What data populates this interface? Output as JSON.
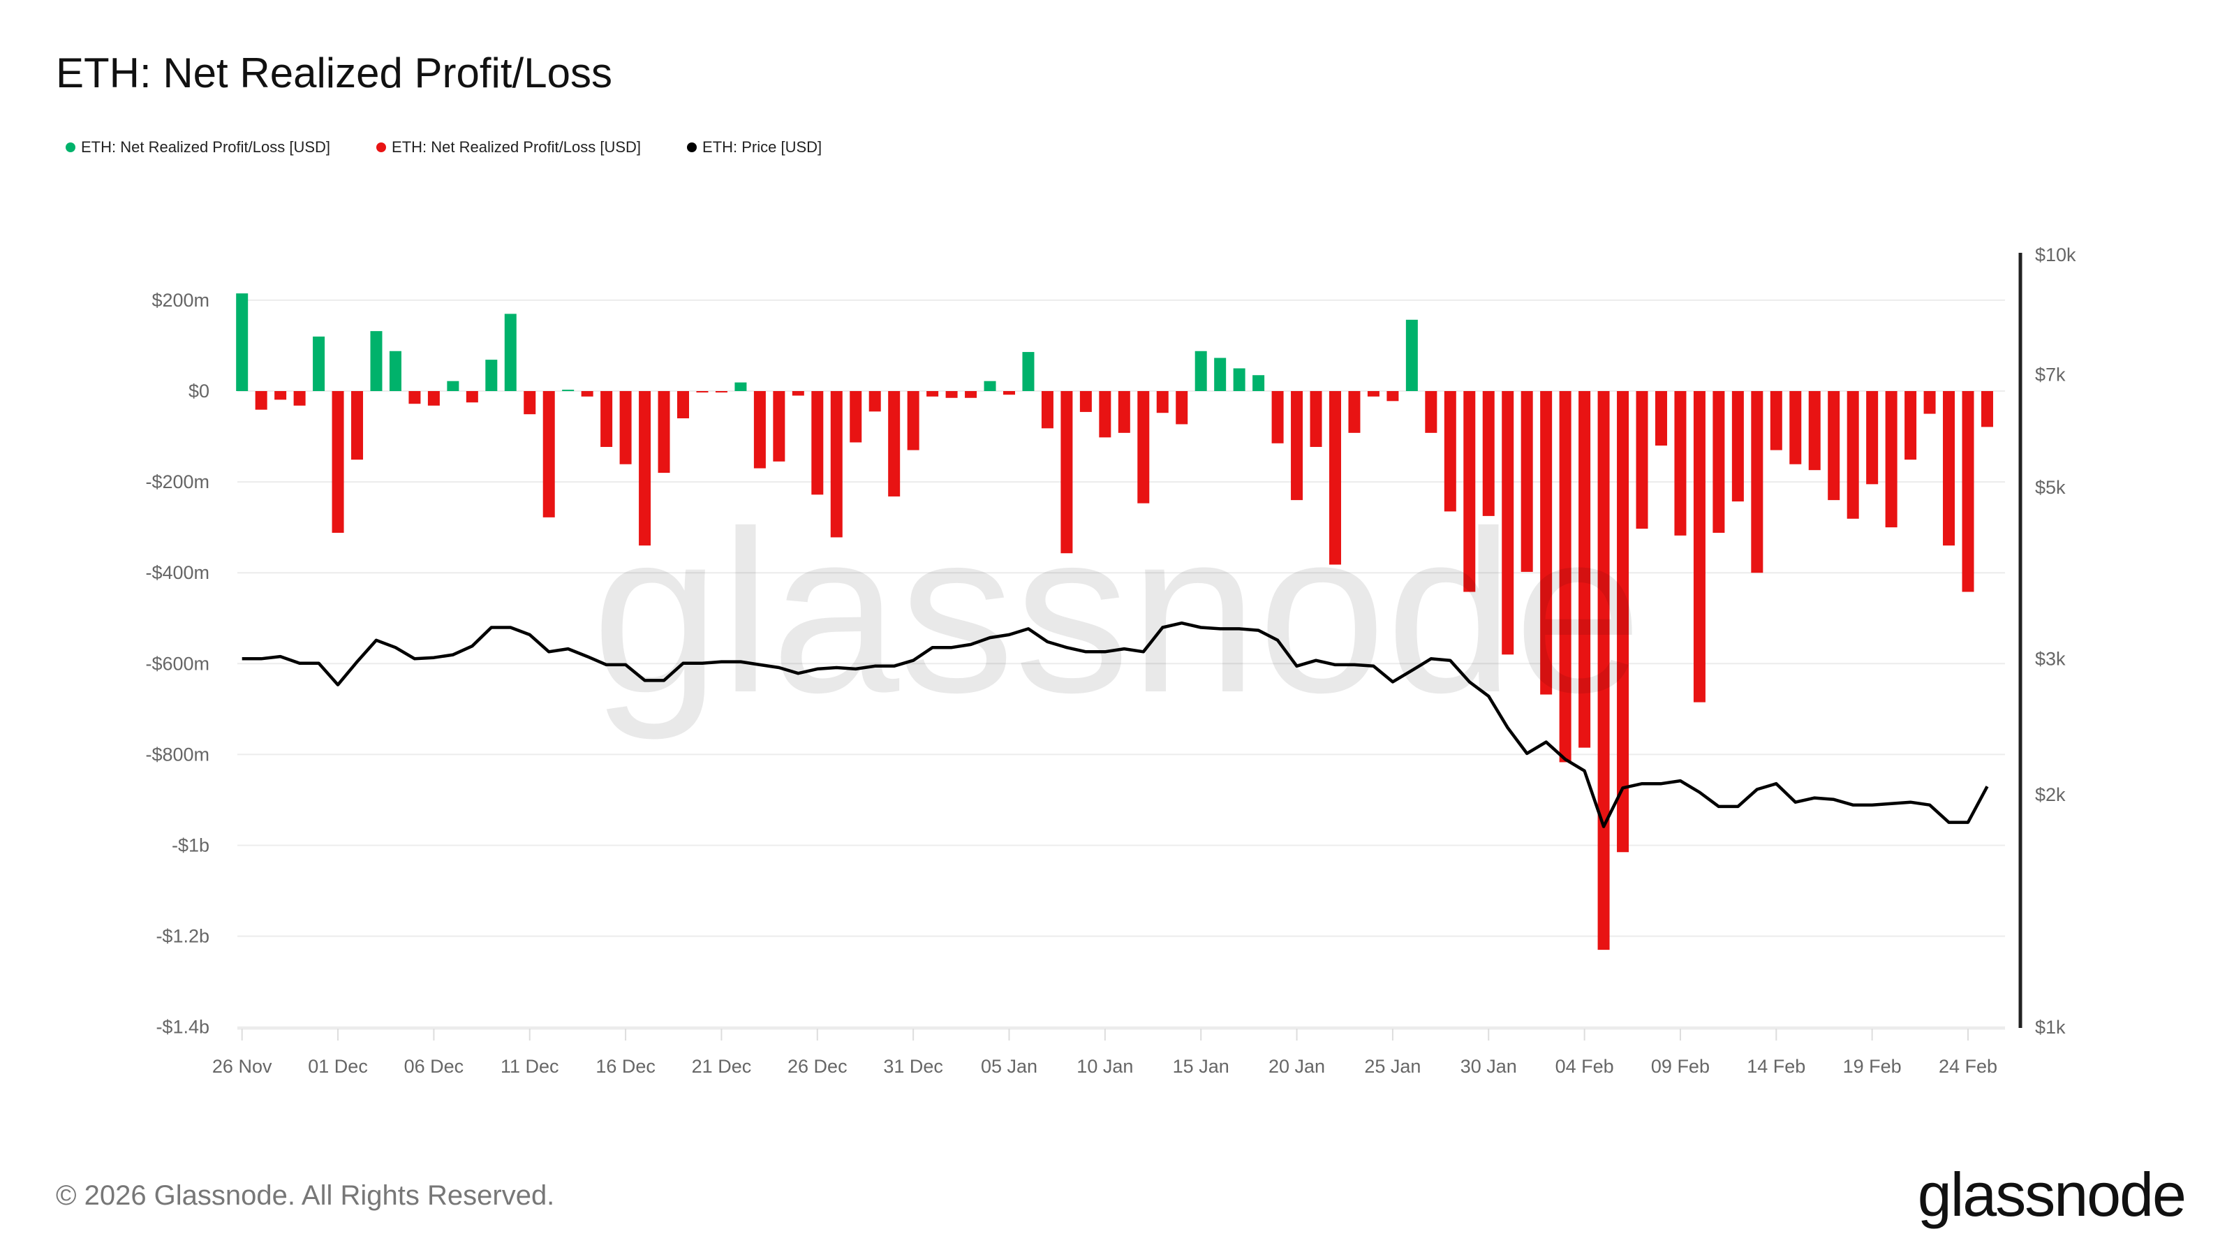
{
  "title": "ETH: Net Realized Profit/Loss",
  "legend": [
    {
      "label": "ETH: Net Realized Profit/Loss [USD]",
      "color": "#00b26b"
    },
    {
      "label": "ETH: Net Realized Profit/Loss [USD]",
      "color": "#e81313"
    },
    {
      "label": "ETH: Price [USD]",
      "color": "#000000"
    }
  ],
  "footer": "© 2026 Glassnode. All Rights Reserved.",
  "logo": "glassnode",
  "watermark": "glassnode",
  "chart_data": {
    "type": "bar",
    "title": "ETH: Net Realized Profit/Loss",
    "x_tick_labels": [
      "26 Nov",
      "01 Dec",
      "06 Dec",
      "11 Dec",
      "16 Dec",
      "21 Dec",
      "26 Dec",
      "31 Dec",
      "05 Jan",
      "10 Jan",
      "15 Jan",
      "20 Jan",
      "25 Jan",
      "30 Jan",
      "04 Feb",
      "09 Feb",
      "14 Feb",
      "19 Feb",
      "24 Feb"
    ],
    "x": [
      "26 Nov",
      "27 Nov",
      "28 Nov",
      "29 Nov",
      "30 Nov",
      "01 Dec",
      "02 Dec",
      "03 Dec",
      "04 Dec",
      "05 Dec",
      "06 Dec",
      "07 Dec",
      "08 Dec",
      "09 Dec",
      "10 Dec",
      "11 Dec",
      "12 Dec",
      "13 Dec",
      "14 Dec",
      "15 Dec",
      "16 Dec",
      "17 Dec",
      "18 Dec",
      "19 Dec",
      "20 Dec",
      "21 Dec",
      "22 Dec",
      "23 Dec",
      "24 Dec",
      "25 Dec",
      "26 Dec",
      "27 Dec",
      "28 Dec",
      "29 Dec",
      "30 Dec",
      "31 Dec",
      "01 Jan",
      "02 Jan",
      "03 Jan",
      "04 Jan",
      "05 Jan",
      "06 Jan",
      "07 Jan",
      "08 Jan",
      "09 Jan",
      "10 Jan",
      "11 Jan",
      "12 Jan",
      "13 Jan",
      "14 Jan",
      "15 Jan",
      "16 Jan",
      "17 Jan",
      "18 Jan",
      "19 Jan",
      "20 Jan",
      "21 Jan",
      "22 Jan",
      "23 Jan",
      "24 Jan",
      "25 Jan",
      "26 Jan",
      "27 Jan",
      "28 Jan",
      "29 Jan",
      "30 Jan",
      "31 Jan",
      "01 Feb",
      "02 Feb",
      "03 Feb",
      "04 Feb",
      "05 Feb",
      "06 Feb",
      "07 Feb",
      "08 Feb",
      "09 Feb",
      "10 Feb",
      "11 Feb",
      "12 Feb",
      "13 Feb",
      "14 Feb",
      "15 Feb",
      "16 Feb",
      "17 Feb",
      "18 Feb",
      "19 Feb",
      "20 Feb",
      "21 Feb",
      "22 Feb",
      "23 Feb",
      "24 Feb",
      "25 Feb"
    ],
    "left_axis": {
      "unit": "USD millions",
      "ylim": [
        -1400,
        250
      ],
      "ticks": [
        200,
        0,
        -200,
        -400,
        -600,
        -800,
        -1000,
        -1200,
        -1400
      ],
      "tick_labels": [
        "$200m",
        "$0",
        "-$200m",
        "-$400m",
        "-$600m",
        "-$800m",
        "-$1b",
        "-$1.2b",
        "-$1.4b"
      ]
    },
    "right_axis": {
      "scale": "log",
      "ylim": [
        1000,
        10000
      ],
      "ticks": [
        10000,
        7000,
        5000,
        3000,
        2000,
        1000
      ],
      "tick_labels": [
        "$10k",
        "$7k",
        "$5k",
        "$3k",
        "$2k",
        "$1k"
      ]
    },
    "grid": true,
    "legend_position": "top-left",
    "series": [
      {
        "name": "ETH: Net Realized Profit/Loss [USD]",
        "type": "bar",
        "positive_color": "#00b26b",
        "negative_color": "#e81313",
        "values": [
          215,
          -41,
          -19,
          -32,
          120,
          -312,
          -151,
          132,
          88,
          -28,
          -32,
          22,
          -25,
          69,
          170,
          -51,
          -278,
          3,
          -12,
          -123,
          -161,
          -340,
          -180,
          -60,
          -3,
          -3,
          19,
          -170,
          -155,
          -10,
          -228,
          -322,
          -113,
          -45,
          -232,
          -130,
          -12,
          -15,
          -15,
          22,
          -8,
          86,
          -82,
          -357,
          -46,
          -102,
          -92,
          -247,
          -48,
          -73,
          88,
          73,
          50,
          35,
          -115,
          -240,
          -123,
          -382,
          -92,
          -12,
          -22,
          157,
          -92,
          -265,
          -442,
          -275,
          -580,
          -398,
          -668,
          -817,
          -785,
          -1230,
          -1015,
          -303,
          -120,
          -318,
          -685,
          -312,
          -243,
          -400,
          -130,
          -161,
          -174,
          -240,
          -281,
          -205,
          -300,
          -151,
          -50,
          -340,
          -442,
          -79
        ]
      },
      {
        "name": "ETH: Price [USD]",
        "type": "line",
        "axis": "right",
        "color": "#000000",
        "values": [
          3000,
          3000,
          3020,
          2960,
          2960,
          2776,
          2973,
          3170,
          3102,
          3000,
          3010,
          3036,
          3115,
          3293,
          3293,
          3223,
          3063,
          3090,
          3020,
          2947,
          2947,
          2812,
          2812,
          2960,
          2960,
          2973,
          2973,
          2947,
          2922,
          2872,
          2910,
          2922,
          2910,
          2935,
          2935,
          2985,
          3102,
          3102,
          3130,
          3195,
          3223,
          3280,
          3156,
          3102,
          3063,
          3063,
          3090,
          3063,
          3293,
          3337,
          3293,
          3280,
          3280,
          3265,
          3170,
          2935,
          2985,
          2947,
          2947,
          2935,
          2800,
          2897,
          3000,
          2985,
          2800,
          2683,
          2442,
          2262,
          2340,
          2223,
          2148,
          1819,
          2041,
          2067,
          2067,
          2085,
          2015,
          1931,
          1931,
          2032,
          2067,
          1956,
          1981,
          1972,
          1940,
          1940,
          1948,
          1956,
          1940,
          1842,
          1842,
          2050
        ]
      }
    ]
  }
}
